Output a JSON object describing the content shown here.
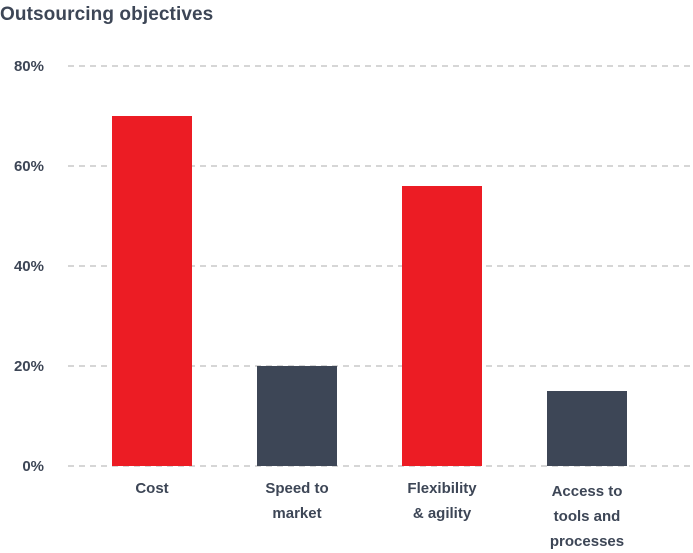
{
  "chart_data": {
    "type": "bar",
    "title": "Outsourcing objectives",
    "categories": [
      [
        "Cost"
      ],
      [
        "Speed to",
        "market"
      ],
      [
        "Flexibility",
        "& agility"
      ],
      [
        "Access to",
        "tools and",
        "processes"
      ]
    ],
    "values": [
      70,
      20,
      56,
      15
    ],
    "yticks": [
      "0%",
      "20%",
      "40%",
      "60%",
      "80%"
    ],
    "ylim": [
      0,
      80
    ],
    "grid": true,
    "xlabel": "",
    "ylabel": ""
  },
  "colors": {
    "highlight": "#ec1c24",
    "base": "#3d4656",
    "grid": "#c8c8c8",
    "bar_colors": [
      "#ec1c24",
      "#3d4656",
      "#ec1c24",
      "#3d4656"
    ]
  }
}
